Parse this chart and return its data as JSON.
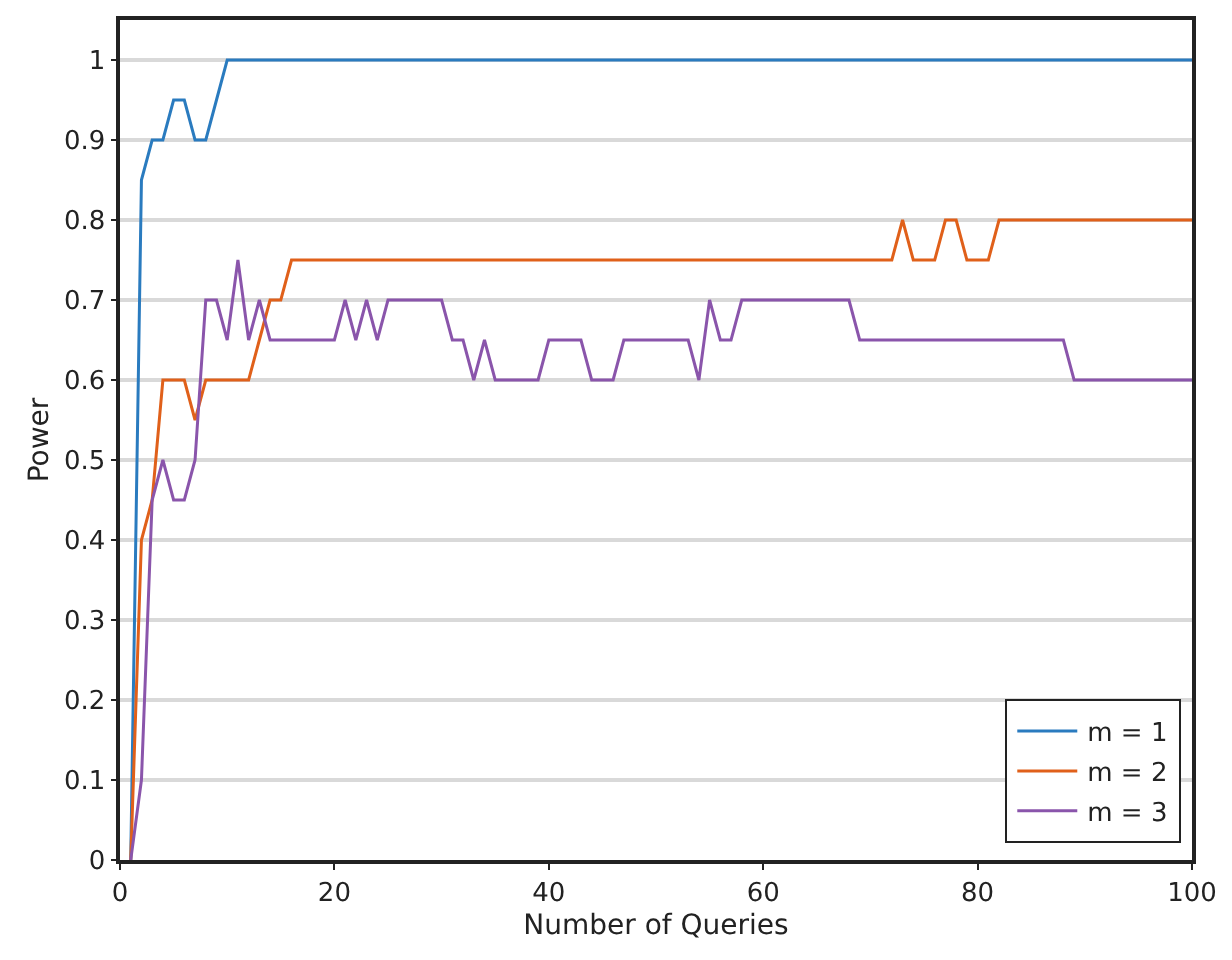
{
  "chart_data": {
    "type": "line",
    "xlabel": "Number of Queries",
    "ylabel": "Power",
    "x": [
      1,
      2,
      3,
      4,
      5,
      6,
      7,
      8,
      9,
      10,
      11,
      12,
      13,
      14,
      15,
      16,
      17,
      18,
      19,
      20,
      21,
      22,
      23,
      24,
      25,
      26,
      27,
      28,
      29,
      30,
      31,
      32,
      33,
      34,
      35,
      36,
      37,
      38,
      39,
      40,
      41,
      42,
      43,
      44,
      45,
      46,
      47,
      48,
      49,
      50,
      51,
      52,
      53,
      54,
      55,
      56,
      57,
      58,
      59,
      60,
      61,
      62,
      63,
      64,
      65,
      66,
      67,
      68,
      69,
      70,
      71,
      72,
      73,
      74,
      75,
      76,
      77,
      78,
      79,
      80,
      81,
      82,
      83,
      84,
      85,
      86,
      87,
      88,
      89,
      90,
      91,
      92,
      93,
      94,
      95,
      96,
      97,
      98,
      99,
      100
    ],
    "series": [
      {
        "name": "m = 1",
        "color": "#2a7bbf",
        "values": [
          0,
          0.85,
          0.9,
          0.9,
          0.95,
          0.95,
          0.9,
          0.9,
          0.95,
          1,
          1,
          1,
          1,
          1,
          1,
          1,
          1,
          1,
          1,
          1,
          1,
          1,
          1,
          1,
          1,
          1,
          1,
          1,
          1,
          1,
          1,
          1,
          1,
          1,
          1,
          1,
          1,
          1,
          1,
          1,
          1,
          1,
          1,
          1,
          1,
          1,
          1,
          1,
          1,
          1,
          1,
          1,
          1,
          1,
          1,
          1,
          1,
          1,
          1,
          1,
          1,
          1,
          1,
          1,
          1,
          1,
          1,
          1,
          1,
          1,
          1,
          1,
          1,
          1,
          1,
          1,
          1,
          1,
          1,
          1,
          1,
          1,
          1,
          1,
          1,
          1,
          1,
          1,
          1,
          1,
          1,
          1,
          1,
          1,
          1,
          1,
          1,
          1,
          1,
          1
        ]
      },
      {
        "name": "m = 2",
        "color": "#e0601a",
        "values": [
          0,
          0.4,
          0.45,
          0.6,
          0.6,
          0.6,
          0.55,
          0.6,
          0.6,
          0.6,
          0.6,
          0.6,
          0.65,
          0.7,
          0.7,
          0.75,
          0.75,
          0.75,
          0.75,
          0.75,
          0.75,
          0.75,
          0.75,
          0.75,
          0.75,
          0.75,
          0.75,
          0.75,
          0.75,
          0.75,
          0.75,
          0.75,
          0.75,
          0.75,
          0.75,
          0.75,
          0.75,
          0.75,
          0.75,
          0.75,
          0.75,
          0.75,
          0.75,
          0.75,
          0.75,
          0.75,
          0.75,
          0.75,
          0.75,
          0.75,
          0.75,
          0.75,
          0.75,
          0.75,
          0.75,
          0.75,
          0.75,
          0.75,
          0.75,
          0.75,
          0.75,
          0.75,
          0.75,
          0.75,
          0.75,
          0.75,
          0.75,
          0.75,
          0.75,
          0.75,
          0.75,
          0.75,
          0.8,
          0.75,
          0.75,
          0.75,
          0.8,
          0.8,
          0.75,
          0.75,
          0.75,
          0.8,
          0.8,
          0.8,
          0.8,
          0.8,
          0.8,
          0.8,
          0.8,
          0.8,
          0.8,
          0.8,
          0.8,
          0.8,
          0.8,
          0.8,
          0.8,
          0.8,
          0.8,
          0.8
        ]
      },
      {
        "name": "m = 3",
        "color": "#8a55ab",
        "values": [
          0,
          0.1,
          0.45,
          0.5,
          0.45,
          0.45,
          0.5,
          0.7,
          0.7,
          0.65,
          0.75,
          0.65,
          0.7,
          0.65,
          0.65,
          0.65,
          0.65,
          0.65,
          0.65,
          0.65,
          0.7,
          0.65,
          0.7,
          0.65,
          0.7,
          0.7,
          0.7,
          0.7,
          0.7,
          0.7,
          0.65,
          0.65,
          0.6,
          0.65,
          0.6,
          0.6,
          0.6,
          0.6,
          0.6,
          0.65,
          0.65,
          0.65,
          0.65,
          0.6,
          0.6,
          0.6,
          0.65,
          0.65,
          0.65,
          0.65,
          0.65,
          0.65,
          0.65,
          0.6,
          0.7,
          0.65,
          0.65,
          0.7,
          0.7,
          0.7,
          0.7,
          0.7,
          0.7,
          0.7,
          0.7,
          0.7,
          0.7,
          0.7,
          0.65,
          0.65,
          0.65,
          0.65,
          0.65,
          0.65,
          0.65,
          0.65,
          0.65,
          0.65,
          0.65,
          0.65,
          0.65,
          0.65,
          0.65,
          0.65,
          0.65,
          0.65,
          0.65,
          0.65,
          0.6,
          0.6,
          0.6,
          0.6,
          0.6,
          0.6,
          0.6,
          0.6,
          0.6,
          0.6,
          0.6,
          0.6
        ]
      }
    ],
    "xlim": [
      0,
      100
    ],
    "xticks": [
      0,
      20,
      40,
      60,
      80,
      100
    ],
    "ylim": [
      0,
      1.05
    ],
    "yticks": [
      0,
      0.1,
      0.2,
      0.3,
      0.4,
      0.5,
      0.6,
      0.7,
      0.8,
      0.9,
      1
    ],
    "grid": "y",
    "legend": "bottom right",
    "marker": "none",
    "line_style": "solid"
  }
}
